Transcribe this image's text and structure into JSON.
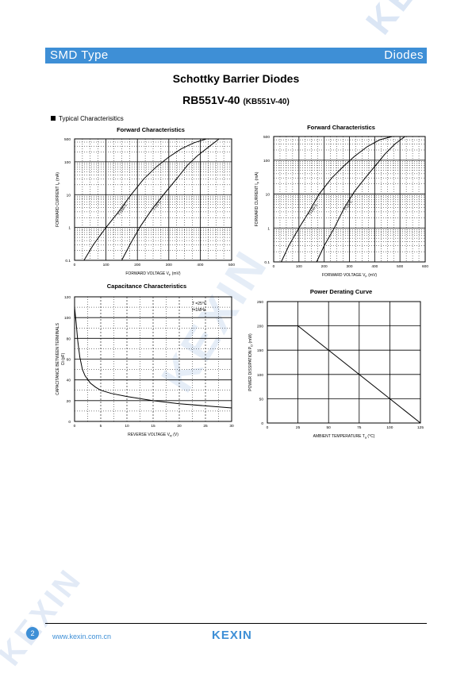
{
  "header": {
    "type": "SMD Type",
    "category": "Diodes"
  },
  "title": "Schottky Barrier Diodes",
  "part_number": "RB551V-40",
  "part_alt": "(KB551V-40)",
  "section_title": "Typical  Characterisitics",
  "footer": {
    "page": "2",
    "url": "www.kexin.com.cn",
    "logo": "KEXIN"
  },
  "watermark": "KEXIN",
  "chart_data": [
    {
      "id": "fwd1",
      "type": "line",
      "title": "Forward   Characteristics",
      "xlabel": "FORWARD VOLTAGE   V",
      "xlabel_sub": "F",
      "xunit": "(mV)",
      "ylabel": "FORWARD CURRENT   I",
      "ylabel_sub": "F",
      "yunit": "(mA)",
      "yscale": "log",
      "xlim": [
        0,
        500
      ],
      "ylim": [
        0.1,
        500
      ],
      "xticks": [
        "0",
        "100",
        "200",
        "300",
        "400",
        "500"
      ],
      "yticks": [
        "0.1",
        "1",
        "10",
        "100",
        "500"
      ],
      "series": [
        {
          "name": "T=100°C",
          "x": [
            30,
            60,
            100,
            140,
            180,
            220,
            260,
            300,
            340,
            380,
            420
          ],
          "y": [
            0.1,
            0.3,
            1,
            3,
            10,
            30,
            70,
            140,
            250,
            380,
            500
          ]
        },
        {
          "name": "T=25°C",
          "x": [
            150,
            180,
            210,
            250,
            290,
            330,
            360,
            390,
            430,
            460
          ],
          "y": [
            0.1,
            0.35,
            1.1,
            4,
            12,
            35,
            80,
            150,
            300,
            500
          ]
        }
      ]
    },
    {
      "id": "fwd2",
      "type": "line",
      "title": "Forward    Characteristics",
      "xlabel": "FORWARD VOLTAGE   V",
      "xlabel_sub": "F",
      "xunit": "(mV)",
      "ylabel": "FORWARD CURRENT   I",
      "ylabel_sub": "F",
      "yunit": "(mA)",
      "yscale": "log",
      "xlim": [
        0,
        600
      ],
      "ylim": [
        0.1,
        500
      ],
      "xticks": [
        "0",
        "100",
        "200",
        "300",
        "400",
        "500",
        "600"
      ],
      "yticks": [
        "0.1",
        "1",
        "10",
        "100",
        "500"
      ],
      "series": [
        {
          "name": "T=100°C",
          "x": [
            30,
            60,
            100,
            140,
            180,
            230,
            280,
            320,
            370,
            420,
            470
          ],
          "y": [
            0.1,
            0.3,
            1,
            3,
            10,
            30,
            70,
            130,
            250,
            400,
            500
          ]
        },
        {
          "name": "T=25°C",
          "x": [
            170,
            200,
            240,
            280,
            320,
            370,
            410,
            440,
            480,
            520
          ],
          "y": [
            0.1,
            0.3,
            1,
            4,
            12,
            35,
            80,
            150,
            300,
            500
          ]
        }
      ]
    },
    {
      "id": "cap",
      "type": "line",
      "title": "Capacitance Characteristics",
      "xlabel": "REVERSE VOLTAGE   V",
      "xlabel_sub": "R",
      "xunit": "(V)",
      "ylabel": "CAPACITANCE BETWEEN TERMINALS",
      "ylabel2": "C",
      "ylabel2_sub": "t",
      "yunit": "(pF)",
      "xlim": [
        0,
        30
      ],
      "ylim": [
        0,
        120
      ],
      "xticks": [
        "0",
        "5",
        "10",
        "15",
        "20",
        "25",
        "30"
      ],
      "yticks": [
        "0",
        "20",
        "40",
        "60",
        "80",
        "100",
        "120"
      ],
      "annotations": [
        "T =25°C",
        "f=1MHz"
      ],
      "annotation_sub": "a",
      "series": [
        {
          "name": "",
          "x": [
            0,
            0.3,
            0.6,
            1,
            1.5,
            2,
            3,
            4,
            5,
            7,
            10,
            15,
            20,
            25,
            30
          ],
          "y": [
            110,
            95,
            78,
            62,
            50,
            44,
            37,
            33,
            30,
            27,
            24,
            20,
            17,
            15,
            13
          ]
        }
      ]
    },
    {
      "id": "pwr",
      "type": "line",
      "title": "Power Derating Curve",
      "xlabel": "AMBIENT TEMPERATURE   T",
      "xlabel_sub": "a",
      "xunit": "(°C)",
      "ylabel": "POWER DISSIPATION   P",
      "ylabel_sub": "D",
      "yunit": "(mW)",
      "xlim": [
        0,
        125
      ],
      "ylim": [
        0,
        250
      ],
      "xticks": [
        "0",
        "25",
        "50",
        "75",
        "100",
        "125"
      ],
      "yticks": [
        "0",
        "50",
        "100",
        "150",
        "200",
        "250"
      ],
      "series": [
        {
          "name": "",
          "x": [
            0,
            25,
            125
          ],
          "y": [
            200,
            200,
            0
          ]
        }
      ]
    }
  ]
}
